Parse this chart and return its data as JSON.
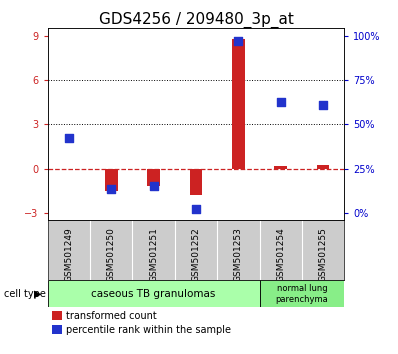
{
  "title": "GDS4256 / 209480_3p_at",
  "samples": [
    "GSM501249",
    "GSM501250",
    "GSM501251",
    "GSM501252",
    "GSM501253",
    "GSM501254",
    "GSM501255"
  ],
  "transformed_count": [
    0.0,
    -1.5,
    -1.2,
    -1.8,
    8.8,
    0.15,
    0.25
  ],
  "percentile_rank_scaled": [
    2.1,
    -1.4,
    -1.2,
    -2.7,
    8.65,
    4.5,
    4.3
  ],
  "left_yticks": [
    -3,
    0,
    3,
    6,
    9
  ],
  "right_tick_positions": [
    -3,
    0,
    3,
    6,
    9
  ],
  "right_tick_labels": [
    "0%",
    "25%",
    "50%",
    "75%",
    "100%"
  ],
  "ylim": [
    -3.5,
    9.5
  ],
  "dotted_lines": [
    3,
    6
  ],
  "bar_color": "#cc2222",
  "dot_color": "#2233cc",
  "bar_width": 0.3,
  "dot_size": 40,
  "group1_label": "caseous TB granulomas",
  "group2_label": "normal lung\nparenchyma",
  "group1_samples": [
    0,
    1,
    2,
    3,
    4
  ],
  "group2_samples": [
    5,
    6
  ],
  "group1_color": "#aaffaa",
  "group2_color": "#88ee88",
  "cell_type_label": "cell type",
  "legend_red": "transformed count",
  "legend_blue": "percentile rank within the sample",
  "title_fontsize": 11,
  "tick_fontsize": 7,
  "sample_fontsize": 6.5,
  "background_color": "#ffffff",
  "plot_bg": "#ffffff",
  "right_tick_color": "#0000cc",
  "left_tick_color": "#cc2222",
  "sample_bg": "#cccccc"
}
